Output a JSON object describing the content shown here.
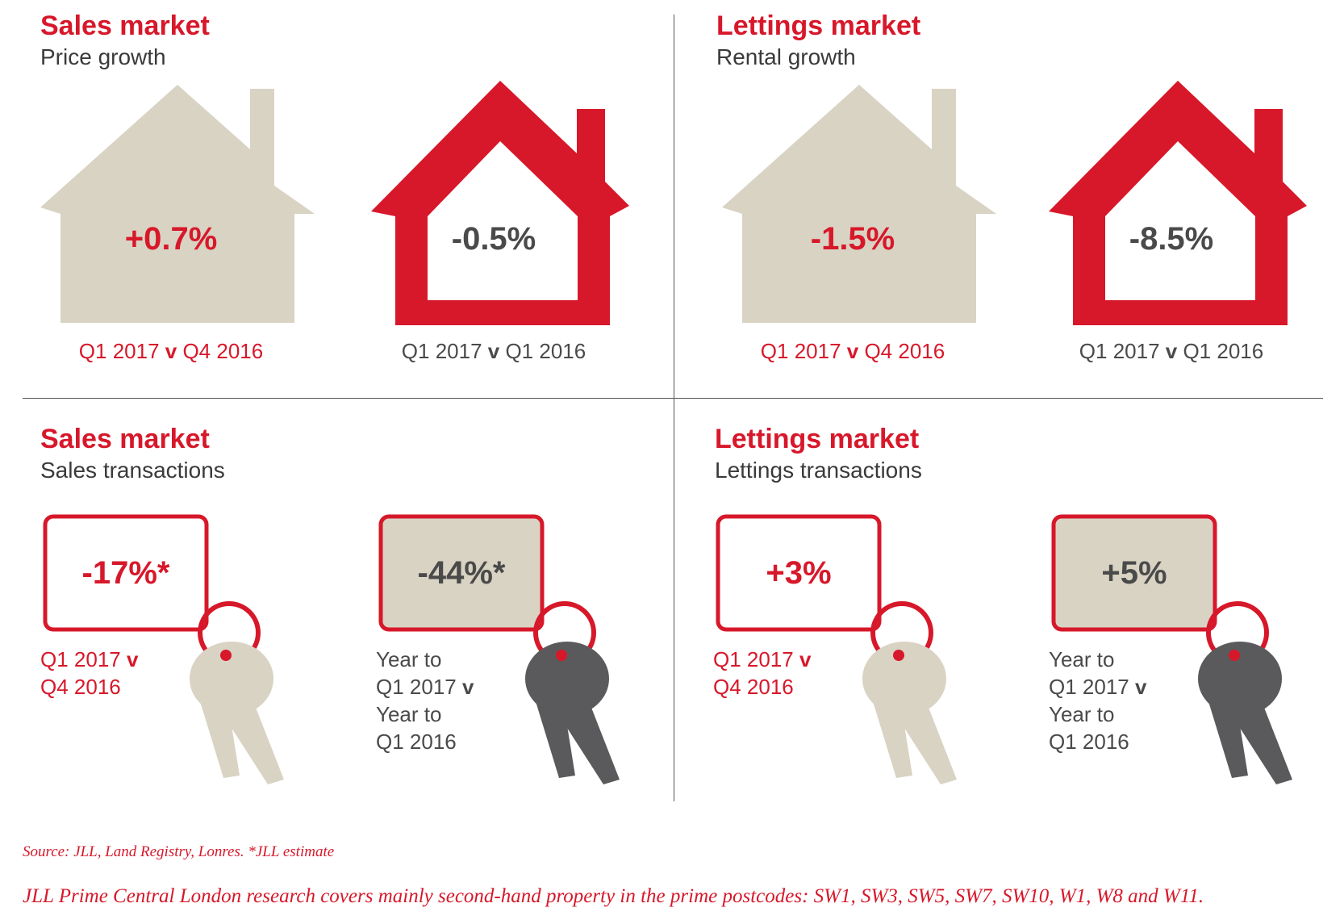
{
  "colors": {
    "red": "#d7182a",
    "beige": "#d9d3c4",
    "dark_text": "#4a4a4a",
    "key_grey": "#5a5a5c"
  },
  "panels": {
    "sales_price": {
      "title": "Sales market",
      "subtitle": "Price growth",
      "left": {
        "value": "+0.7%",
        "caption_a": "Q1 2017 ",
        "caption_v": "v",
        "caption_b": " Q4 2016"
      },
      "right": {
        "value": "-0.5%",
        "caption_a": "Q1 2017 ",
        "caption_v": "v",
        "caption_b": " Q1 2016"
      }
    },
    "lettings_rental": {
      "title": "Lettings market",
      "subtitle": "Rental growth",
      "left": {
        "value": "-1.5%",
        "caption_a": "Q1 2017 ",
        "caption_v": "v",
        "caption_b": " Q4 2016"
      },
      "right": {
        "value": "-8.5%",
        "caption_a": "Q1 2017 ",
        "caption_v": "v",
        "caption_b": " Q1 2016"
      }
    },
    "sales_transactions": {
      "title": "Sales market",
      "subtitle": "Sales transactions",
      "left": {
        "value": "-17%*",
        "line1": "Q1 2017 ",
        "line1_v": "v",
        "line2": "Q4 2016"
      },
      "right": {
        "value": "-44%*",
        "line1": "Year to",
        "line2": "Q1 2017 ",
        "line2_v": "v",
        "line3": "Year to",
        "line4": "Q1 2016"
      }
    },
    "lettings_transactions": {
      "title": "Lettings market",
      "subtitle": "Lettings transactions",
      "left": {
        "value": "+3%",
        "line1": "Q1 2017 ",
        "line1_v": "v",
        "line2": "Q4 2016"
      },
      "right": {
        "value": "+5%",
        "line1": "Year to",
        "line2": "Q1 2017 ",
        "line2_v": "v",
        "line3": "Year to",
        "line4": "Q1 2016"
      }
    }
  },
  "footer": {
    "source": "Source: JLL, Land Registry, Lonres. *JLL estimate",
    "note": "JLL Prime Central London research covers mainly second-hand property in the prime postcodes: SW1, SW3, SW5, SW7, SW10, W1, W8 and W11."
  }
}
